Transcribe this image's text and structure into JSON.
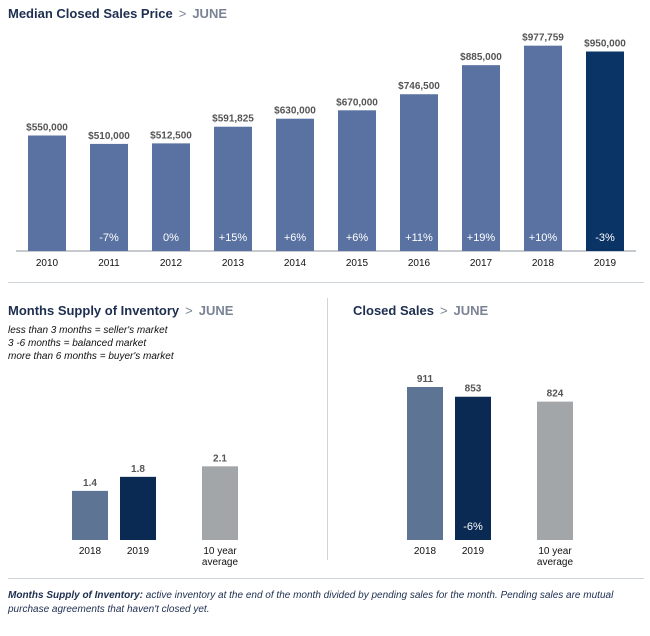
{
  "sections": {
    "median": {
      "title": "Median Closed Sales Price",
      "sep": ">",
      "month": "JUNE"
    },
    "inventory": {
      "title": "Months Supply of Inventory",
      "sep": ">",
      "month": "JUNE",
      "notes": [
        "less than 3 months = seller's market",
        "3 -6 months = balanced market",
        "more than 6 months = buyer's market"
      ]
    },
    "closed": {
      "title": "Closed Sales",
      "sep": ">",
      "month": "JUNE"
    }
  },
  "footer": {
    "label": "Months Supply of Inventory:",
    "text": " active inventory at the end of the month divided by pending sales for the month. Pending sales are mutual purchase agreements that haven't closed yet."
  },
  "colors": {
    "base": "#5a72a2",
    "highlight": "#0a3366",
    "gray_blue": "#5d7495",
    "navy": "#0b2a53",
    "gray": "#a3a6a9",
    "text_gray": "#555555"
  },
  "chart_data": [
    {
      "type": "bar",
      "title": "Median Closed Sales Price",
      "categories": [
        "2010",
        "2011",
        "2012",
        "2013",
        "2014",
        "2015",
        "2016",
        "2017",
        "2018",
        "2019"
      ],
      "values": [
        550000,
        510000,
        512500,
        591825,
        630000,
        670000,
        746500,
        885000,
        977759,
        950000
      ],
      "value_labels": [
        "$550,000",
        "$510,000",
        "$512,500",
        "$591,825",
        "$630,000",
        "$670,000",
        "$746,500",
        "$885,000",
        "$977,759",
        "$950,000"
      ],
      "change_labels": [
        "",
        "-7%",
        "0%",
        "+15%",
        "+6%",
        "+6%",
        "+11%",
        "+19%",
        "+10%",
        "-3%"
      ],
      "ylim": [
        0,
        1000000
      ]
    },
    {
      "type": "bar",
      "title": "Months Supply of Inventory",
      "categories": [
        "2018",
        "2019",
        "10 year average"
      ],
      "values": [
        1.4,
        1.8,
        2.1
      ],
      "value_labels": [
        "1.4",
        "1.8",
        "2.1"
      ],
      "ylim": [
        0,
        5.7
      ]
    },
    {
      "type": "bar",
      "title": "Closed Sales",
      "categories": [
        "2018",
        "2019",
        "10 year average"
      ],
      "values": [
        911,
        853,
        824
      ],
      "value_labels": [
        "911",
        "853",
        "824"
      ],
      "change_labels": [
        "",
        "-6%",
        ""
      ],
      "ylim": [
        0,
        911
      ]
    }
  ]
}
